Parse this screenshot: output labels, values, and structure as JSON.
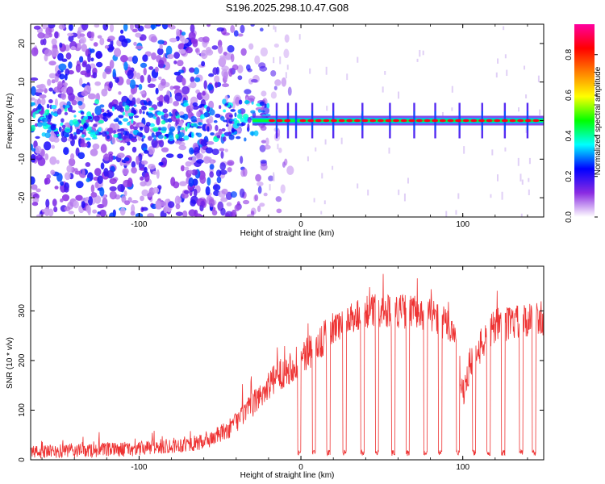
{
  "title": "S196.2025.298.10.47.G08",
  "chart_data": [
    {
      "type": "heatmap",
      "xlabel": "Height of straight line (km)",
      "ylabel": "Frequency (Hz)",
      "xlim": [
        -167,
        150
      ],
      "ylim": [
        -25,
        25
      ],
      "xticks": [
        -100,
        0,
        100
      ],
      "yticks": [
        -20,
        -10,
        0,
        10,
        20
      ],
      "colorbar": {
        "label": "Normalized spectral amplitude",
        "range": [
          0,
          0.95
        ],
        "ticks": [
          0.0,
          0.2,
          0.4,
          0.6,
          0.8
        ],
        "colors": [
          "#ffffff",
          "#8a2be2",
          "#0000ff",
          "#00ffff",
          "#00ff00",
          "#ffff00",
          "#ff8000",
          "#ff0000",
          "#ff00a0"
        ]
      },
      "carrier_frequency": 0,
      "carrier_amplitude": 0.85,
      "noise_region_x": [
        -167,
        -30
      ],
      "noise_amplitude_range": [
        0.05,
        0.3
      ],
      "strong_dots_x": [
        -15,
        -8,
        -3,
        7,
        20,
        38,
        55,
        70,
        83,
        98,
        112,
        126,
        140
      ]
    },
    {
      "type": "line",
      "xlabel": "Height of straight line (km)",
      "ylabel": "SNR (10 * v/v)",
      "xlim": [
        -167,
        150
      ],
      "ylim": [
        0,
        390
      ],
      "xticks": [
        -100,
        0,
        100
      ],
      "yticks": [
        0,
        100,
        200,
        300
      ],
      "line_color": "#ee3333",
      "series": [
        {
          "name": "SNR",
          "profile_x": [
            -167,
            -100,
            -60,
            -45,
            -30,
            -20,
            -10,
            0,
            10,
            20,
            30,
            40,
            60,
            80,
            95,
            100,
            105,
            120,
            150
          ],
          "profile_y": [
            15,
            22,
            35,
            60,
            110,
            150,
            180,
            200,
            230,
            265,
            285,
            300,
            300,
            295,
            260,
            130,
            200,
            270,
            285
          ],
          "noise_amplitude": 35,
          "dropouts_x": [
            -1,
            8,
            17,
            27,
            38,
            47,
            57,
            66,
            77,
            86,
            97,
            107,
            116,
            125,
            136,
            144
          ],
          "dropout_floor": 8
        }
      ]
    }
  ]
}
